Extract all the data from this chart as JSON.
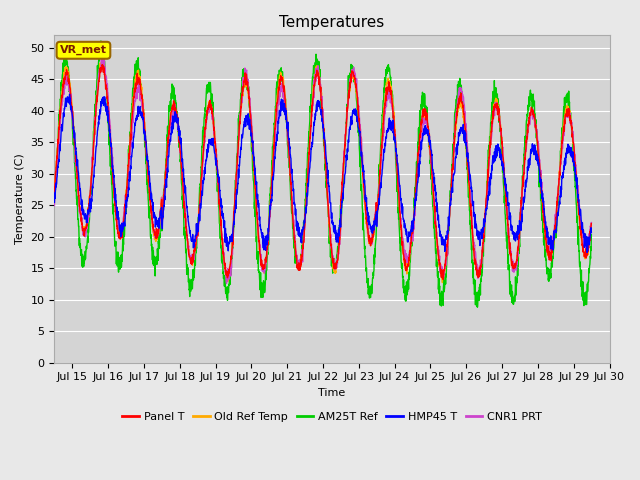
{
  "title": "Temperatures",
  "xlabel": "Time",
  "ylabel": "Temperature (C)",
  "annotation": "VR_met",
  "x_tick_labels": [
    "Jul 15",
    "Jul 16",
    "Jul 17",
    "Jul 18",
    "Jul 19",
    "Jul 20",
    "Jul 21",
    "Jul 22",
    "Jul 23",
    "Jul 24",
    "Jul 25",
    "Jul 26",
    "Jul 27",
    "Jul 28",
    "Jul 29",
    "Jul 30"
  ],
  "series_colors": [
    "#ff0000",
    "#ffaa00",
    "#00cc00",
    "#0000ff",
    "#cc44cc"
  ],
  "series_names": [
    "Panel T",
    "Old Ref Temp",
    "AM25T Ref",
    "HMP45 T",
    "CNR1 PRT"
  ],
  "background_color": "#e8e8e8",
  "plot_area_color": "#d4d4d4",
  "grid_color": "#ffffff",
  "annotation_bg": "#ffff00",
  "annotation_border": "#996600",
  "ylim": [
    0,
    52
  ],
  "yticks": [
    0,
    5,
    10,
    15,
    20,
    25,
    30,
    35,
    40,
    45,
    50
  ],
  "title_fontsize": 11,
  "axis_label_fontsize": 8,
  "tick_fontsize": 8,
  "legend_fontsize": 8
}
